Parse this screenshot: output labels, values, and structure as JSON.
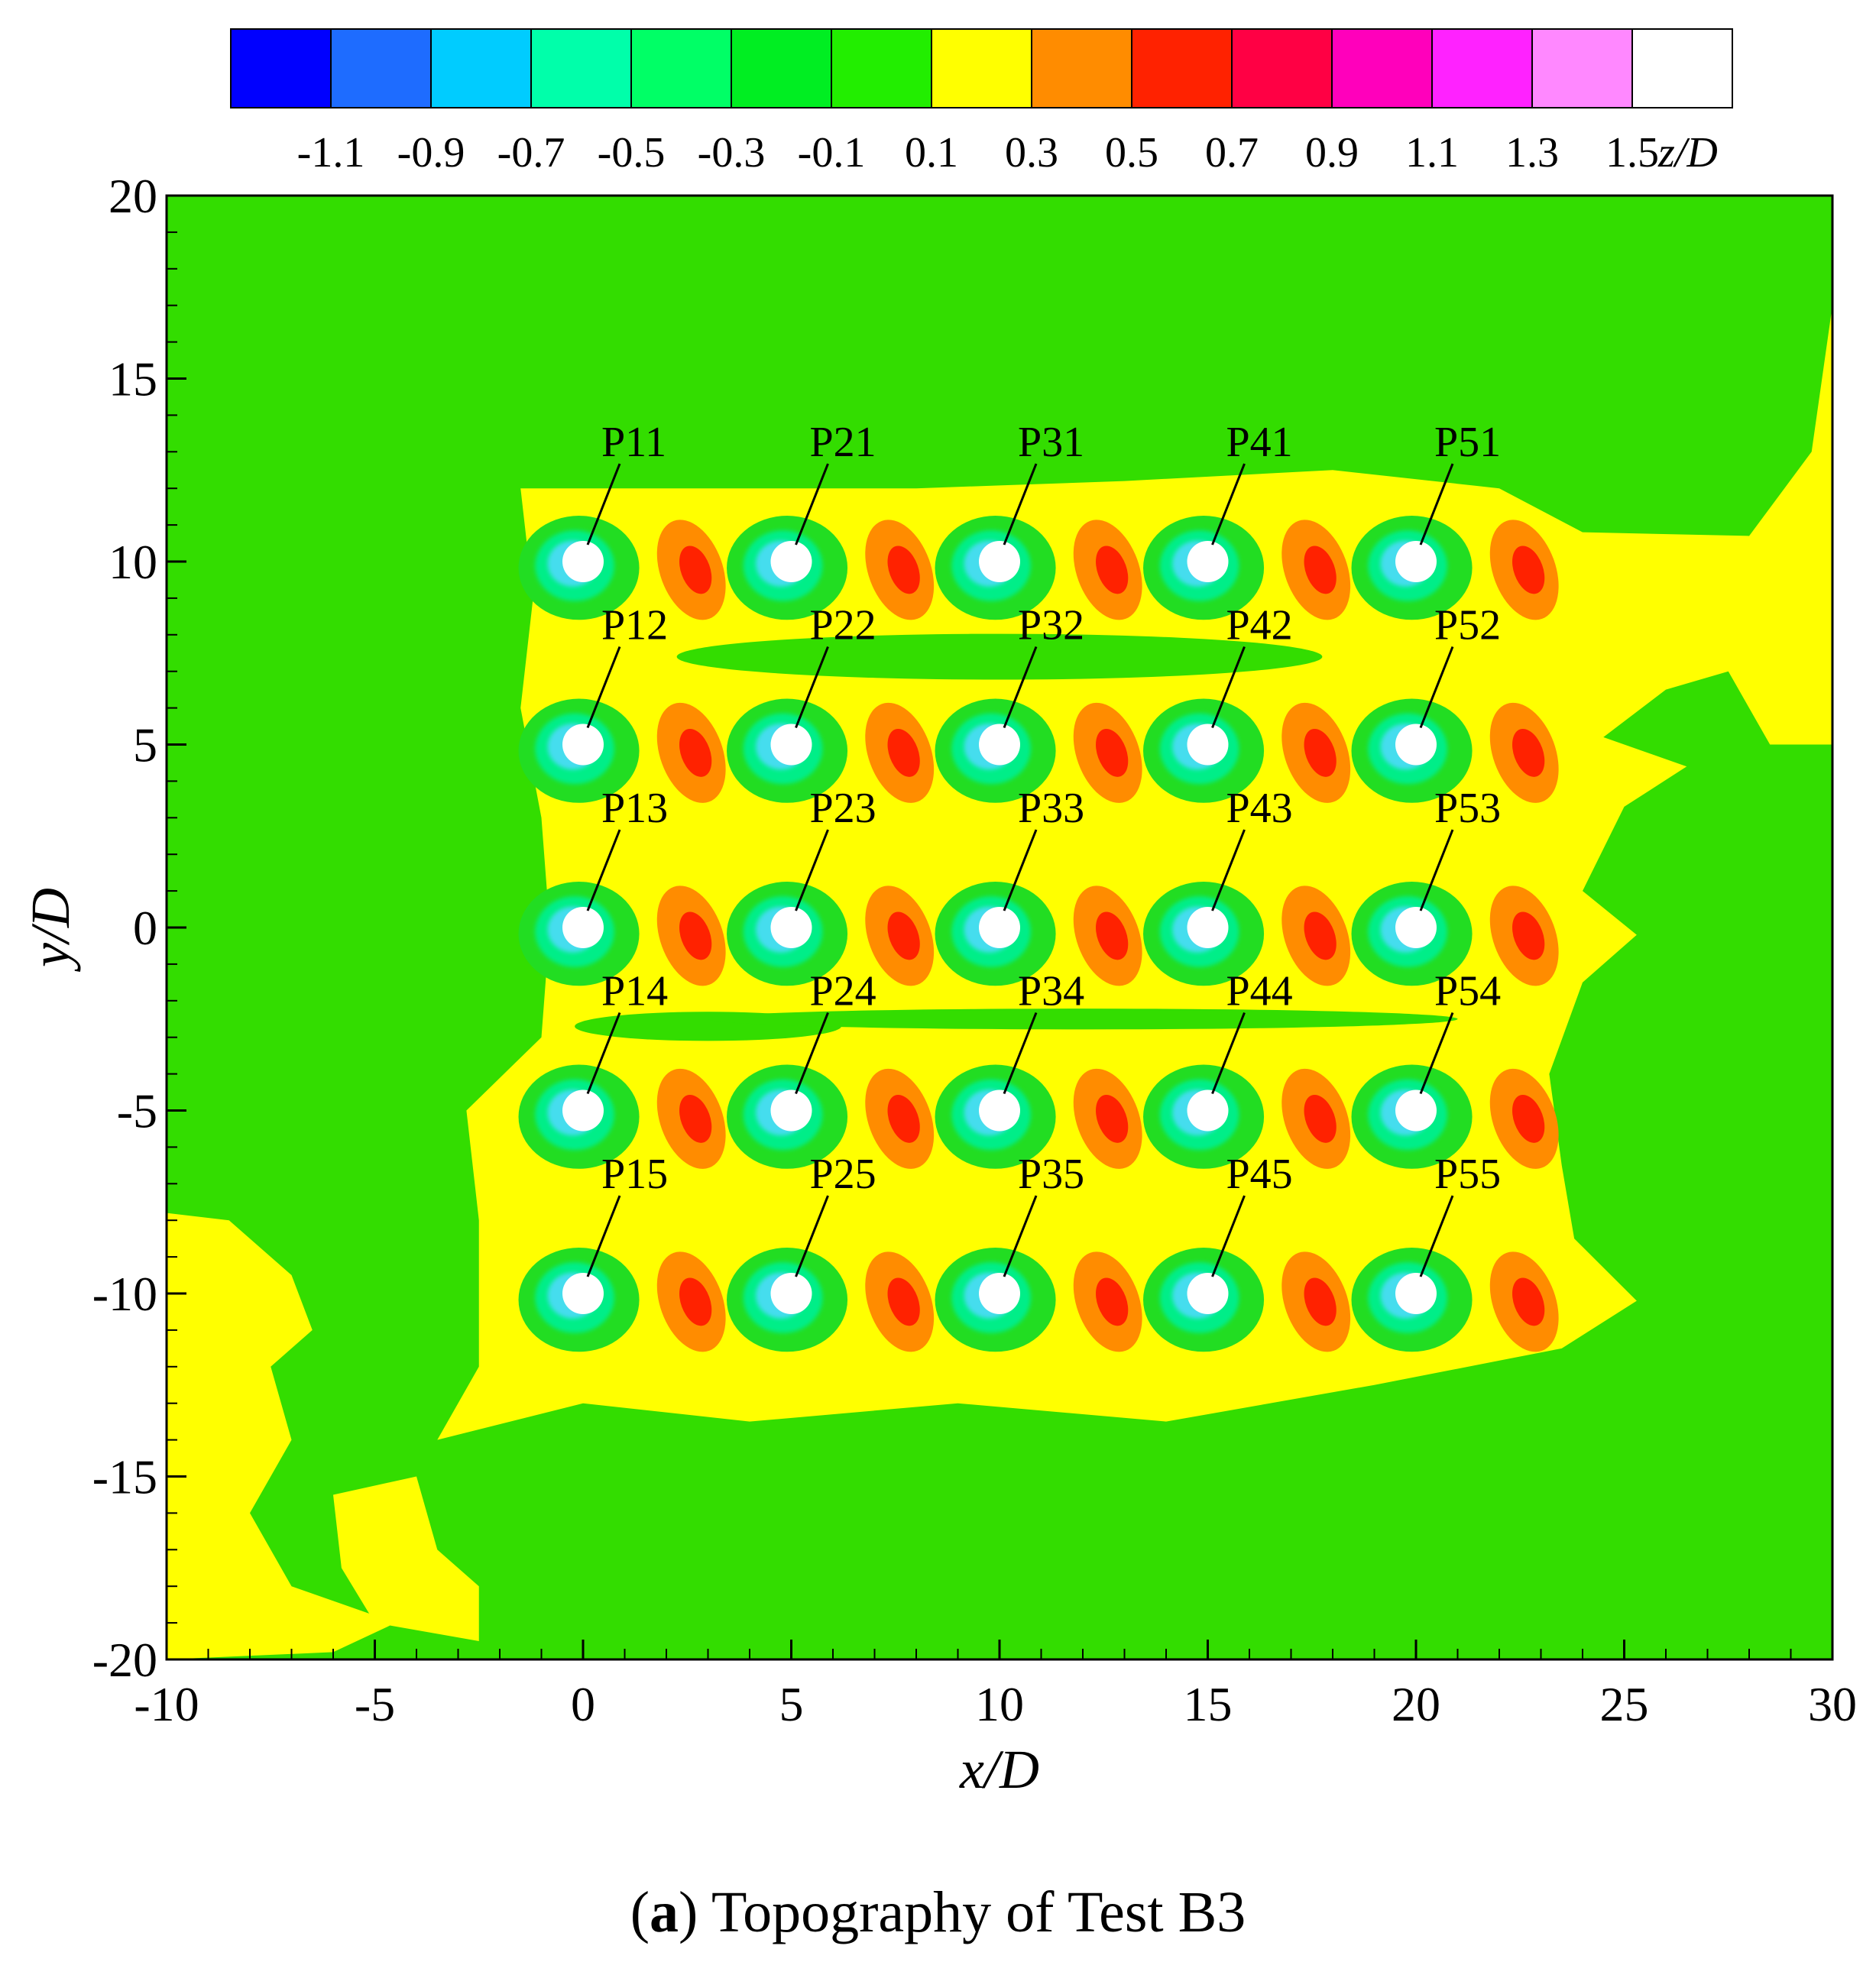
{
  "chart_data": {
    "type": "heatmap",
    "title": "",
    "xlabel": "x/D",
    "ylabel": "y/D",
    "xlim": [
      -10,
      30
    ],
    "ylim": [
      -20,
      20
    ],
    "x_ticks": [
      -10,
      -5,
      0,
      5,
      10,
      15,
      20,
      25,
      30
    ],
    "y_ticks": [
      20,
      15,
      10,
      5,
      0,
      -5,
      -10,
      -15,
      -20
    ],
    "grid": false,
    "colorbar": {
      "title": "z/D",
      "levels": [
        "-1.1",
        "-0.9",
        "-0.7",
        "-0.5",
        "-0.3",
        "-0.1",
        "0.1",
        "0.3",
        "0.5",
        "0.7",
        "0.9",
        "1.1",
        "1.3",
        "1.5"
      ],
      "colors": [
        "#0000ff",
        "#1e6cff",
        "#00ccff",
        "#00ffaa",
        "#00ff66",
        "#00ee22",
        "#22ee00",
        "#ffff00",
        "#ff8c00",
        "#ff2200",
        "#ff0044",
        "#ff00bb",
        "#ff22ff",
        "#ff88ff",
        "#ffffff"
      ]
    },
    "background_color": "#33dd00",
    "deposition_color": "#ffff00",
    "piles": [
      {
        "label": "P11",
        "x": 0,
        "y": 10
      },
      {
        "label": "P21",
        "x": 5,
        "y": 10
      },
      {
        "label": "P31",
        "x": 10,
        "y": 10
      },
      {
        "label": "P41",
        "x": 15,
        "y": 10
      },
      {
        "label": "P51",
        "x": 20,
        "y": 10
      },
      {
        "label": "P12",
        "x": 0,
        "y": 5
      },
      {
        "label": "P22",
        "x": 5,
        "y": 5
      },
      {
        "label": "P32",
        "x": 10,
        "y": 5
      },
      {
        "label": "P42",
        "x": 15,
        "y": 5
      },
      {
        "label": "P52",
        "x": 20,
        "y": 5
      },
      {
        "label": "P13",
        "x": 0,
        "y": 0
      },
      {
        "label": "P23",
        "x": 5,
        "y": 0
      },
      {
        "label": "P33",
        "x": 10,
        "y": 0
      },
      {
        "label": "P43",
        "x": 15,
        "y": 0
      },
      {
        "label": "P53",
        "x": 20,
        "y": 0
      },
      {
        "label": "P14",
        "x": 0,
        "y": -5
      },
      {
        "label": "P24",
        "x": 5,
        "y": -5
      },
      {
        "label": "P34",
        "x": 10,
        "y": -5
      },
      {
        "label": "P44",
        "x": 15,
        "y": -5
      },
      {
        "label": "P54",
        "x": 20,
        "y": -5
      },
      {
        "label": "P15",
        "x": 0,
        "y": -10
      },
      {
        "label": "P25",
        "x": 5,
        "y": -10
      },
      {
        "label": "P35",
        "x": 10,
        "y": -10
      },
      {
        "label": "P45",
        "x": 15,
        "y": -10
      },
      {
        "label": "P55",
        "x": 20,
        "y": -10
      }
    ]
  },
  "caption": {
    "letter": "a",
    "text": "Topography of Test B3"
  }
}
